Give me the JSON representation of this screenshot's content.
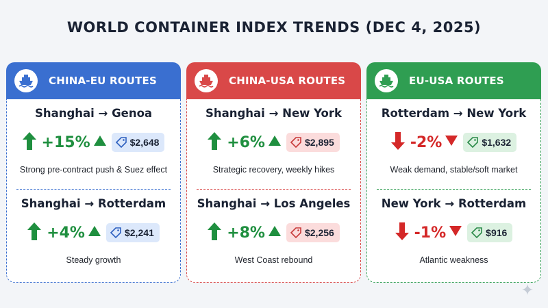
{
  "title": "WORLD CONTAINER INDEX TRENDS (DEC 4, 2025)",
  "cards": [
    {
      "title": "CHINA-EU ROUTES",
      "icon": "ship-icon",
      "accent": "#3a6fd0",
      "routes": [
        {
          "route": "Shanghai → Genoa",
          "change": "+15%",
          "direction": "up",
          "price": "$2,648",
          "note": "Strong pre-contract push & Suez effect"
        },
        {
          "route": "Shanghai → Rotterdam",
          "change": "+4%",
          "direction": "up",
          "price": "$2,241",
          "note": "Steady growth"
        }
      ]
    },
    {
      "title": "CHINA-USA ROUTES",
      "icon": "ship-icon",
      "accent": "#d94848",
      "routes": [
        {
          "route": "Shanghai → New York",
          "change": "+6%",
          "direction": "up",
          "price": "$2,895",
          "note": "Strategic recovery, weekly hikes"
        },
        {
          "route": "Shanghai → Los Angeles",
          "change": "+8%",
          "direction": "up",
          "price": "$2,256",
          "note": "West Coast rebound"
        }
      ]
    },
    {
      "title": "EU-USA ROUTES",
      "icon": "ship-icon",
      "accent": "#2f9e52",
      "routes": [
        {
          "route": "Rotterdam → New York",
          "change": "-2%",
          "direction": "down",
          "price": "$1,632",
          "note": "Weak demand, stable/soft market"
        },
        {
          "route": "New York → Rotterdam",
          "change": "-1%",
          "direction": "down",
          "price": "$916",
          "note": "Atlantic weakness"
        }
      ]
    }
  ],
  "colors": {
    "up": "#1f8f3f",
    "down": "#d42828",
    "price_blue_bg": "#dce8fb",
    "price_red_bg": "#fbdcdc",
    "price_green_bg": "#dcf1e1"
  }
}
